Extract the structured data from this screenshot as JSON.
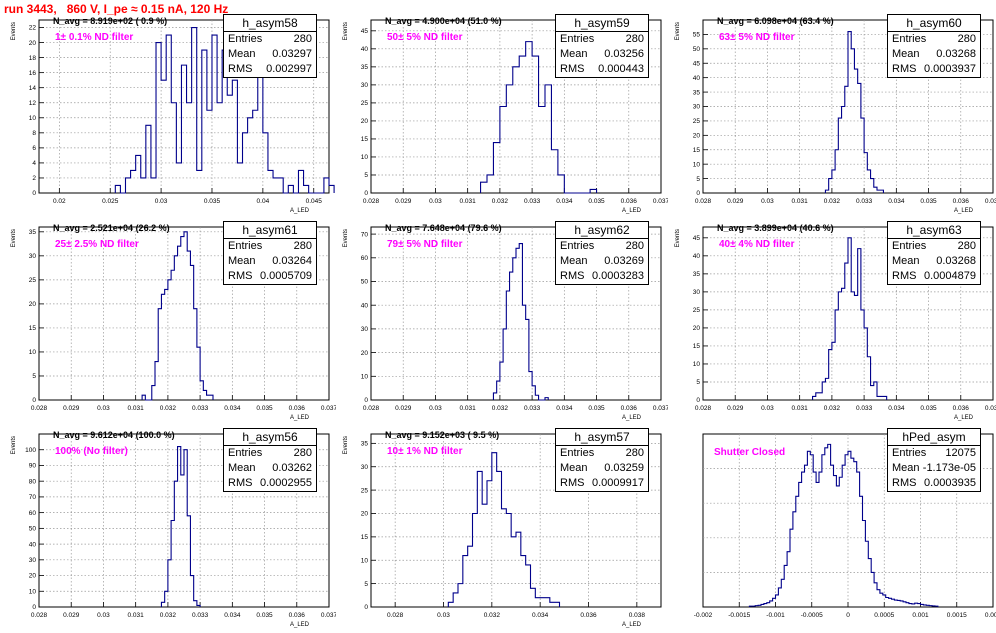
{
  "page_title": "run 3443,   860 V, I_pe ≈ 0.15 nA, 120 Hz",
  "colors": {
    "title": "#ff0000",
    "histogram": "#00008b",
    "filter_label": "#ff00ff",
    "grid": "#999999"
  },
  "chart_data": [
    {
      "type": "histogram",
      "name": "h_asym58",
      "stats": {
        "Entries": "280",
        "Mean": "0.03297",
        "RMS": "0.002997"
      },
      "n_avg": "N_avg = 8.919e+02 ( 0.9 %)",
      "filter": "1± 0.1% ND filter",
      "ylabel": "Events",
      "xlabel": "A_LED",
      "xlim": [
        0.018,
        0.0465
      ],
      "ylim": [
        0,
        23
      ],
      "grid": true,
      "xticks": [
        "0.02",
        "0.025",
        "0.03",
        "0.035",
        "0.04",
        "0.045"
      ],
      "yticks": [
        "0",
        "2",
        "4",
        "6",
        "8",
        "10",
        "12",
        "14",
        "16",
        "18",
        "20",
        "22"
      ],
      "bins": {
        "start": 0.0255,
        "width": 0.0005,
        "counts": [
          1,
          0,
          2,
          3,
          5,
          2,
          9,
          2,
          20,
          15,
          21,
          12,
          4,
          17,
          12,
          22,
          3,
          19,
          11,
          21,
          12,
          19,
          13,
          15,
          4,
          8,
          10,
          11,
          16,
          8,
          3,
          2,
          2,
          0,
          1,
          0,
          3,
          1,
          0,
          0,
          0,
          2,
          1
        ]
      }
    },
    {
      "type": "histogram",
      "name": "h_asym59",
      "stats": {
        "Entries": "280",
        "Mean": "0.03256",
        "RMS": "0.000443"
      },
      "n_avg": "N_avg = 4.900e+04 (51.0 %)",
      "filter": "50± 5% ND filter",
      "ylabel": "Events",
      "xlabel": "A_LED",
      "xlim": [
        0.028,
        0.037
      ],
      "ylim": [
        0,
        48
      ],
      "grid": true,
      "xticks": [
        "0.028",
        "0.029",
        "0.03",
        "0.031",
        "0.032",
        "0.033",
        "0.034",
        "0.035",
        "0.036",
        "0.037"
      ],
      "yticks": [
        "0",
        "5",
        "10",
        "15",
        "20",
        "25",
        "30",
        "35",
        "40",
        "45"
      ],
      "bins": {
        "start": 0.0314,
        "width": 0.0002,
        "counts": [
          3,
          5,
          14,
          24,
          30,
          35,
          38,
          42,
          38,
          24,
          30,
          12,
          5,
          0,
          0,
          0,
          0,
          1
        ]
      }
    },
    {
      "type": "histogram",
      "name": "h_asym60",
      "stats": {
        "Entries": "280",
        "Mean": "0.03268",
        "RMS": "0.0003937"
      },
      "n_avg": "N_avg = 6.098e+04 (63.4 %)",
      "filter": "63± 5% ND filter",
      "ylabel": "Events",
      "xlabel": "A_LED",
      "xlim": [
        0.028,
        0.037
      ],
      "ylim": [
        0,
        60
      ],
      "grid": true,
      "xticks": [
        "0.028",
        "0.029",
        "0.03",
        "0.031",
        "0.032",
        "0.033",
        "0.034",
        "0.035",
        "0.036",
        "0.037"
      ],
      "yticks": [
        "0",
        "5",
        "10",
        "15",
        "20",
        "25",
        "30",
        "35",
        "40",
        "45",
        "50",
        "55"
      ],
      "bins": {
        "start": 0.0318,
        "width": 0.0001,
        "counts": [
          1,
          5,
          8,
          15,
          26,
          30,
          37,
          56,
          50,
          43,
          38,
          26,
          14,
          8,
          5,
          2,
          1,
          1
        ]
      }
    },
    {
      "type": "histogram",
      "name": "h_asym61",
      "stats": {
        "Entries": "280",
        "Mean": "0.03264",
        "RMS": "0.0005709"
      },
      "n_avg": "N_avg = 2.521e+04 (26.2 %)",
      "filter": "25± 2.5% ND filter",
      "ylabel": "Events",
      "xlabel": "A_LED",
      "xlim": [
        0.028,
        0.037
      ],
      "ylim": [
        0,
        36
      ],
      "grid": true,
      "xticks": [
        "0.028",
        "0.029",
        "0.03",
        "0.031",
        "0.032",
        "0.033",
        "0.034",
        "0.035",
        "0.036",
        "0.037"
      ],
      "yticks": [
        "0",
        "5",
        "10",
        "15",
        "20",
        "25",
        "30",
        "35"
      ],
      "bins": {
        "start": 0.0312,
        "width": 0.0001,
        "counts": [
          1,
          0,
          0,
          3,
          8,
          19,
          22,
          23,
          25,
          27,
          30,
          32,
          34,
          35,
          31,
          28,
          19,
          11,
          4,
          2,
          1,
          1
        ]
      }
    },
    {
      "type": "histogram",
      "name": "h_asym62",
      "stats": {
        "Entries": "280",
        "Mean": "0.03269",
        "RMS": "0.0003283"
      },
      "n_avg": "N_avg = 7.648e+04 (79.6 %)",
      "filter": "79± 5% ND filter",
      "ylabel": "Events",
      "xlabel": "A_LED",
      "xlim": [
        0.028,
        0.037
      ],
      "ylim": [
        0,
        73
      ],
      "grid": true,
      "xticks": [
        "0.028",
        "0.029",
        "0.03",
        "0.031",
        "0.032",
        "0.033",
        "0.034",
        "0.035",
        "0.036",
        "0.037"
      ],
      "yticks": [
        "0",
        "10",
        "20",
        "30",
        "40",
        "50",
        "60",
        "70"
      ],
      "bins": {
        "start": 0.0318,
        "width": 0.0001,
        "counts": [
          3,
          8,
          16,
          30,
          46,
          54,
          60,
          64,
          66,
          40,
          34,
          12,
          6,
          2,
          0,
          0,
          1
        ]
      }
    },
    {
      "type": "histogram",
      "name": "h_asym63",
      "stats": {
        "Entries": "280",
        "Mean": "0.03268",
        "RMS": "0.0004879"
      },
      "n_avg": "N_avg = 3.899e+04 (40.6 %)",
      "filter": "40± 4% ND filter",
      "ylabel": "Events",
      "xlabel": "A_LED",
      "xlim": [
        0.028,
        0.037
      ],
      "ylim": [
        0,
        48
      ],
      "grid": true,
      "xticks": [
        "0.028",
        "0.029",
        "0.03",
        "0.031",
        "0.032",
        "0.033",
        "0.034",
        "0.035",
        "0.036",
        "0.037"
      ],
      "yticks": [
        "0",
        "5",
        "10",
        "15",
        "20",
        "25",
        "30",
        "35",
        "40",
        "45"
      ],
      "bins": {
        "start": 0.0314,
        "width": 0.0001,
        "counts": [
          1,
          2,
          2,
          5,
          6,
          14,
          16,
          25,
          30,
          31,
          38,
          45,
          30,
          29,
          42,
          25,
          20,
          12,
          4,
          5,
          1,
          1,
          1
        ]
      }
    },
    {
      "type": "histogram",
      "name": "h_asym56",
      "stats": {
        "Entries": "280",
        "Mean": "0.03262",
        "RMS": "0.0002955"
      },
      "n_avg": "N_avg = 9.612e+04 (100.0 %)",
      "filter": "100% (No filter)",
      "ylabel": "Events",
      "xlabel": "A_LED",
      "xlim": [
        0.028,
        0.037
      ],
      "ylim": [
        0,
        110
      ],
      "grid": true,
      "xticks": [
        "0.028",
        "0.029",
        "0.03",
        "0.031",
        "0.032",
        "0.033",
        "0.034",
        "0.035",
        "0.036",
        "0.037"
      ],
      "yticks": [
        "0",
        "10",
        "20",
        "30",
        "40",
        "50",
        "60",
        "70",
        "80",
        "90",
        "100"
      ],
      "bins": {
        "start": 0.0318,
        "width": 0.0001,
        "counts": [
          3,
          10,
          30,
          55,
          80,
          102,
          84,
          100,
          58,
          20,
          4,
          1
        ]
      }
    },
    {
      "type": "histogram",
      "name": "h_asym57",
      "stats": {
        "Entries": "280",
        "Mean": "0.03259",
        "RMS": "0.0009917"
      },
      "n_avg": "N_avg = 9.152e+03 ( 9.5 %)",
      "filter": "10± 1% ND filter",
      "ylabel": "Events",
      "xlabel": "A_LED",
      "xlim": [
        0.027,
        0.039
      ],
      "ylim": [
        0,
        37
      ],
      "grid": true,
      "xticks": [
        "0.028",
        "0.03",
        "0.032",
        "0.034",
        "0.036",
        "0.038"
      ],
      "yticks": [
        "0",
        "5",
        "10",
        "15",
        "20",
        "25",
        "30",
        "35"
      ],
      "bins": {
        "start": 0.0302,
        "width": 0.0002,
        "counts": [
          1,
          3,
          5,
          11,
          13,
          20,
          29,
          22,
          27,
          33,
          29,
          21,
          20,
          15,
          16,
          11,
          9,
          4,
          2,
          2,
          2,
          1,
          1
        ]
      }
    },
    {
      "type": "histogram",
      "name": "hPed_asym",
      "stats": {
        "Entries": "12075",
        "Mean": "-1.173e-05",
        "RMS": "0.0003935"
      },
      "n_avg": "",
      "filter": "Shutter Closed",
      "ylabel": "",
      "xlabel": "",
      "xlim": [
        -0.002,
        0.002
      ],
      "ylim": [
        0,
        1000
      ],
      "grid": true,
      "xticks": [
        "-0.002",
        "-0.0015",
        "-0.001",
        "-0.0005",
        "0",
        "0.0005",
        "0.001",
        "0.0015",
        "0.002"
      ],
      "yticks": [],
      "bins": {
        "start": -0.00136,
        "width": 4e-05,
        "counts": [
          5,
          5,
          8,
          10,
          15,
          20,
          25,
          35,
          50,
          70,
          110,
          160,
          240,
          320,
          450,
          550,
          640,
          720,
          780,
          820,
          900,
          880,
          780,
          720,
          780,
          880,
          920,
          940,
          820,
          760,
          700,
          750,
          820,
          880,
          900,
          860,
          840,
          780,
          640,
          500,
          380,
          280,
          200,
          140,
          100,
          80,
          70,
          55,
          50,
          45,
          40,
          38,
          35,
          30,
          25,
          20,
          18,
          22,
          20,
          15,
          12,
          10,
          8,
          6,
          5
        ]
      }
    }
  ]
}
